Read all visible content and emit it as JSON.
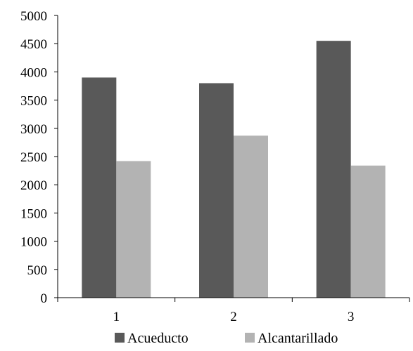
{
  "chart_data": {
    "type": "bar",
    "categories": [
      "1",
      "2",
      "3"
    ],
    "series": [
      {
        "name": "Acueducto",
        "values": [
          3900,
          3800,
          4550
        ],
        "color": "#595959"
      },
      {
        "name": "Alcantarillado",
        "values": [
          2420,
          2870,
          2340
        ],
        "color": "#b3b3b3"
      }
    ],
    "ylim": [
      0,
      5000
    ],
    "yticks": [
      "0",
      "500",
      "1000",
      "1500",
      "2000",
      "2500",
      "3000",
      "3500",
      "4000",
      "4500",
      "5000"
    ],
    "grid": false,
    "legend_position": "bottom"
  }
}
